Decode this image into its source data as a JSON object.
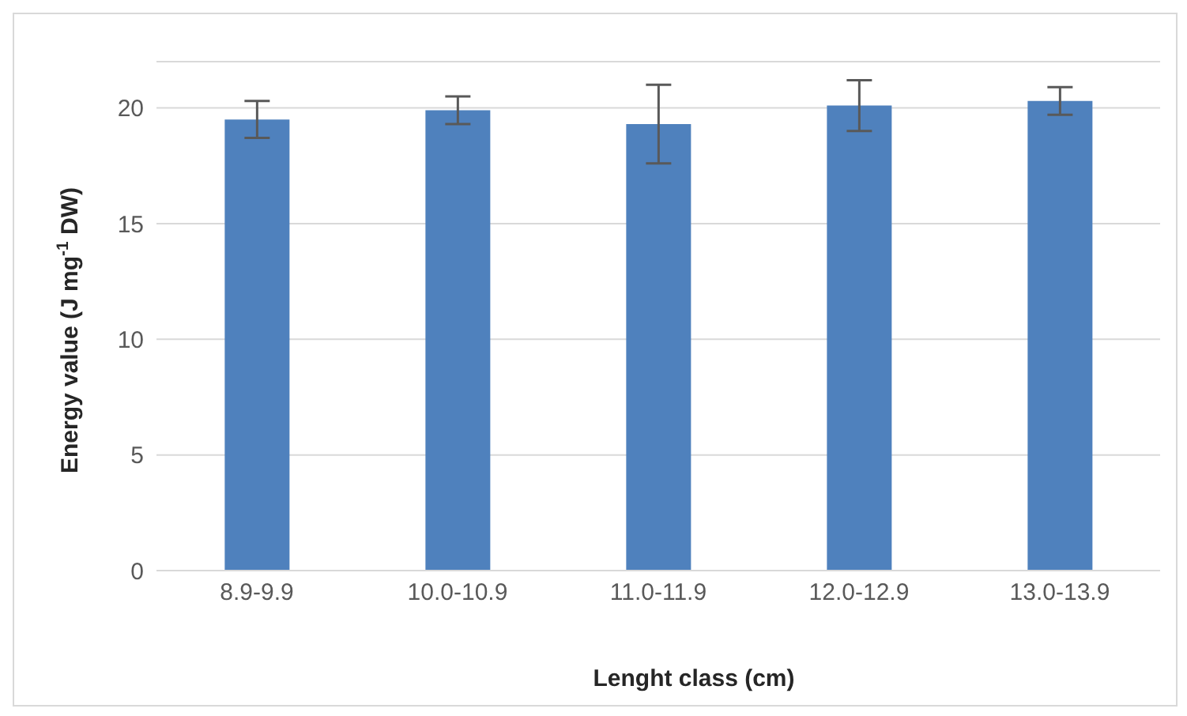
{
  "chart_data": {
    "type": "bar",
    "xlabel": "Lenght class (cm)",
    "ylabel": "Energy value (J mg$^{-1}$ DW)",
    "categories": [
      "8.9-9.9",
      "10.0-10.9",
      "11.0-11.9",
      "12.0-12.9",
      "13.0-13.9"
    ],
    "values": [
      19.5,
      19.9,
      19.3,
      20.1,
      20.3
    ],
    "errors": [
      0.8,
      0.6,
      1.7,
      1.1,
      0.6
    ],
    "color": "#4f81bd",
    "ylim": [
      0,
      22
    ],
    "yticks": [
      0,
      5,
      10,
      15,
      20
    ],
    "grid": "y"
  }
}
